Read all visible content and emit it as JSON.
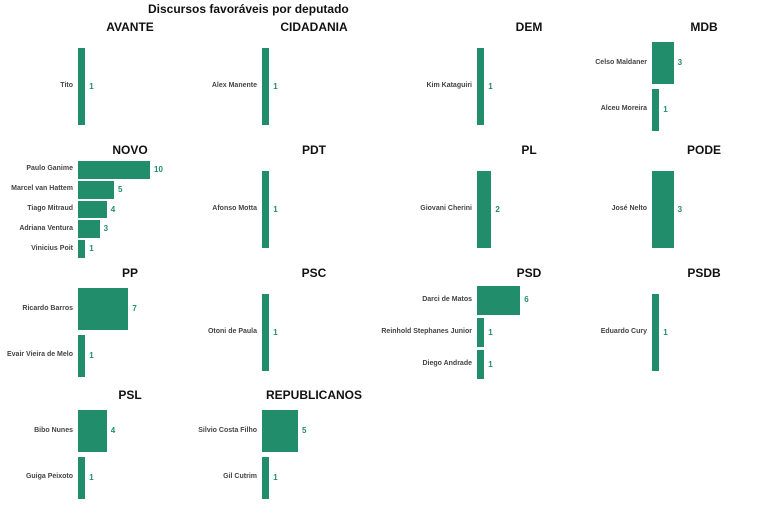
{
  "chart_data": {
    "type": "bar",
    "orientation": "horizontal",
    "title": "Discursos favoráveis por deputado",
    "bar_color": "#218d6a",
    "facets": [
      {
        "party": "AVANTE",
        "categories": [
          "Tito"
        ],
        "values": [
          1
        ]
      },
      {
        "party": "CIDADANIA",
        "categories": [
          "Alex Manente"
        ],
        "values": [
          1
        ]
      },
      {
        "party": "DEM",
        "categories": [
          "Kim Kataguiri"
        ],
        "values": [
          1
        ]
      },
      {
        "party": "MDB",
        "categories": [
          "Celso Maldaner",
          "Alceu Moreira"
        ],
        "values": [
          3,
          1
        ]
      },
      {
        "party": "NOVO",
        "categories": [
          "Paulo Ganime",
          "Marcel van Hattem",
          "Tiago Mitraud",
          "Adriana Ventura",
          "Vinicius Poit"
        ],
        "values": [
          10,
          5,
          4,
          3,
          1
        ]
      },
      {
        "party": "PDT",
        "categories": [
          "Afonso Motta"
        ],
        "values": [
          1
        ]
      },
      {
        "party": "PL",
        "categories": [
          "Giovani Cherini"
        ],
        "values": [
          2
        ]
      },
      {
        "party": "PODE",
        "categories": [
          "José Nelto"
        ],
        "values": [
          3
        ]
      },
      {
        "party": "PP",
        "categories": [
          "Ricardo Barros",
          "Evair Vieira de Melo"
        ],
        "values": [
          7,
          1
        ]
      },
      {
        "party": "PSC",
        "categories": [
          "Otoni de Paula"
        ],
        "values": [
          1
        ]
      },
      {
        "party": "PSD",
        "categories": [
          "Darci de Matos",
          "Reinhold Stephanes Junior",
          "Diego Andrade"
        ],
        "values": [
          6,
          1,
          1
        ]
      },
      {
        "party": "PSDB",
        "categories": [
          "Eduardo Cury"
        ],
        "values": [
          1
        ]
      },
      {
        "party": "PSL",
        "categories": [
          "Bibo Nunes",
          "Guiga Peixoto"
        ],
        "values": [
          4,
          1
        ]
      },
      {
        "party": "REPUBLICANOS",
        "categories": [
          "Silvio Costa Filho",
          "Gil Cutrim"
        ],
        "values": [
          5,
          1
        ]
      }
    ]
  }
}
